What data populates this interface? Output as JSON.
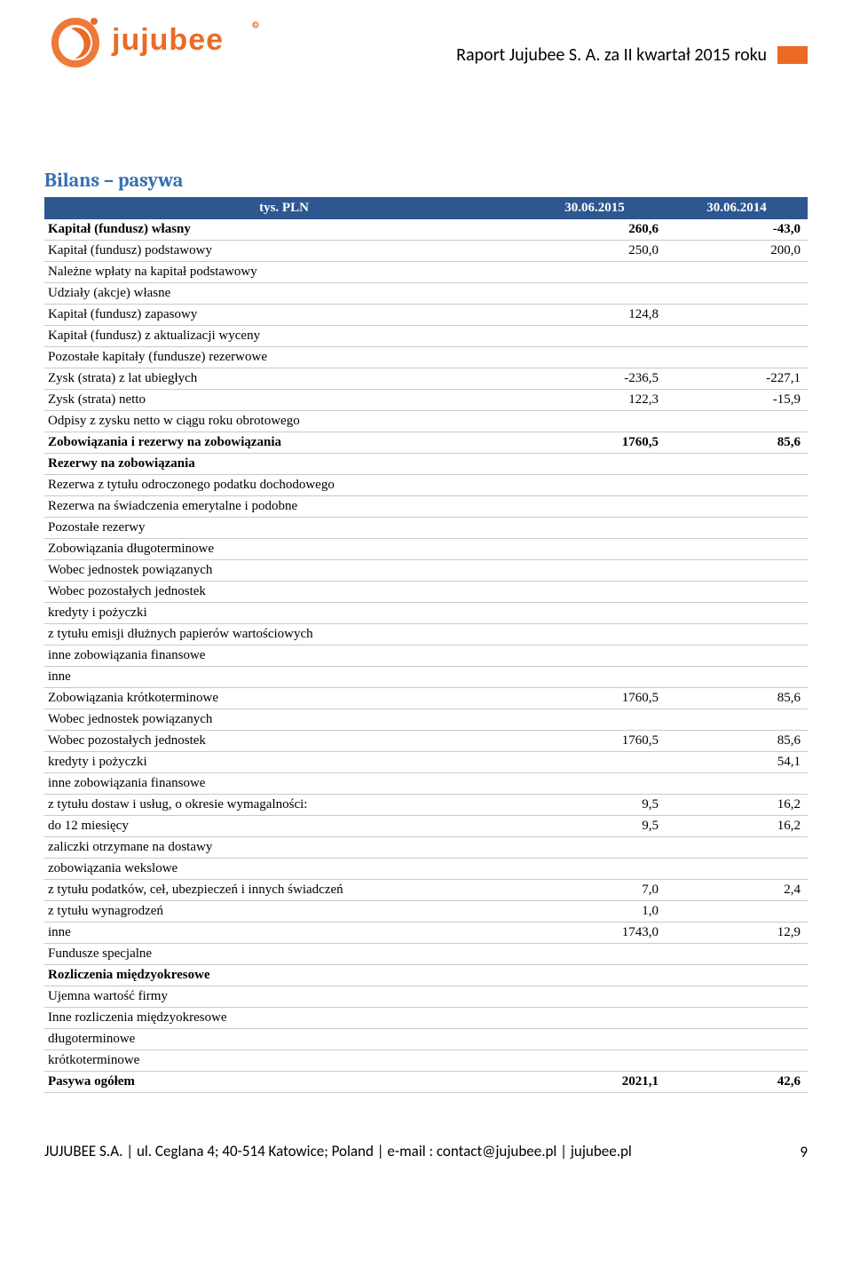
{
  "header": {
    "logo_text": "jujubee",
    "logo_color": "#ec6a24",
    "report_title": "Raport Jujubee S. A. za II kwartał 2015 roku"
  },
  "section_title": "Bilans – pasywa",
  "table": {
    "header_bg": "#2e5790",
    "columns": [
      "tys. PLN",
      "30.06.2015",
      "30.06.2014"
    ],
    "rows": [
      {
        "label": "Kapitał (fundusz) własny",
        "c1": "260,6",
        "c2": "-43,0",
        "bold": true
      },
      {
        "label": "Kapitał (fundusz) podstawowy",
        "c1": "250,0",
        "c2": "200,0"
      },
      {
        "label": "Należne wpłaty na kapitał podstawowy",
        "c1": "",
        "c2": ""
      },
      {
        "label": "Udziały (akcje) własne",
        "c1": "",
        "c2": ""
      },
      {
        "label": "Kapitał (fundusz) zapasowy",
        "c1": "124,8",
        "c2": ""
      },
      {
        "label": "Kapitał (fundusz) z aktualizacji wyceny",
        "c1": "",
        "c2": ""
      },
      {
        "label": "Pozostałe kapitały (fundusze) rezerwowe",
        "c1": "",
        "c2": ""
      },
      {
        "label": "Zysk (strata) z lat ubiegłych",
        "c1": "-236,5",
        "c2": "-227,1"
      },
      {
        "label": "Zysk (strata) netto",
        "c1": "122,3",
        "c2": "-15,9"
      },
      {
        "label": "Odpisy z zysku netto w ciągu roku obrotowego",
        "c1": "",
        "c2": ""
      },
      {
        "label": "Zobowiązania i rezerwy na zobowiązania",
        "c1": "1760,5",
        "c2": "85,6",
        "bold": true
      },
      {
        "label": "Rezerwy na zobowiązania",
        "c1": "",
        "c2": "",
        "bold": true
      },
      {
        "label": "Rezerwa z tytułu odroczonego podatku dochodowego",
        "c1": "",
        "c2": ""
      },
      {
        "label": "Rezerwa na świadczenia emerytalne i podobne",
        "c1": "",
        "c2": ""
      },
      {
        "label": " Pozostałe rezerwy",
        "c1": "",
        "c2": ""
      },
      {
        "label": "Zobowiązania długoterminowe",
        "c1": "",
        "c2": ""
      },
      {
        "label": "Wobec jednostek powiązanych",
        "c1": "",
        "c2": ""
      },
      {
        "label": "Wobec pozostałych jednostek",
        "c1": "",
        "c2": ""
      },
      {
        "label": "kredyty i pożyczki",
        "c1": "",
        "c2": ""
      },
      {
        "label": "z tytułu emisji dłużnych papierów wartościowych",
        "c1": "",
        "c2": ""
      },
      {
        "label": "inne zobowiązania finansowe",
        "c1": "",
        "c2": ""
      },
      {
        "label": "inne",
        "c1": "",
        "c2": ""
      },
      {
        "label": "Zobowiązania krótkoterminowe",
        "c1": "1760,5",
        "c2": "85,6"
      },
      {
        "label": "Wobec jednostek powiązanych",
        "c1": "",
        "c2": ""
      },
      {
        "label": "Wobec pozostałych jednostek",
        "c1": "1760,5",
        "c2": "85,6"
      },
      {
        "label": "kredyty i pożyczki",
        "c1": "",
        "c2": "54,1"
      },
      {
        "label": "inne zobowiązania finansowe",
        "c1": "",
        "c2": ""
      },
      {
        "label": "z tytułu dostaw i usług, o okresie wymagalności:",
        "c1": "9,5",
        "c2": "16,2"
      },
      {
        "label": "do 12 miesięcy",
        "c1": "9,5",
        "c2": "16,2"
      },
      {
        "label": "zaliczki otrzymane na dostawy",
        "c1": "",
        "c2": ""
      },
      {
        "label": "zobowiązania wekslowe",
        "c1": "",
        "c2": ""
      },
      {
        "label": "z tytułu podatków, ceł, ubezpieczeń i innych świadczeń",
        "c1": "7,0",
        "c2": "2,4"
      },
      {
        "label": "z tytułu wynagrodzeń",
        "c1": "1,0",
        "c2": ""
      },
      {
        "label": "inne",
        "c1": "1743,0",
        "c2": "12,9"
      },
      {
        "label": "Fundusze specjalne",
        "c1": "",
        "c2": ""
      },
      {
        "label": "Rozliczenia międzyokresowe",
        "c1": "",
        "c2": "",
        "bold": true
      },
      {
        "label": "Ujemna wartość firmy",
        "c1": "",
        "c2": ""
      },
      {
        "label": "Inne rozliczenia międzyokresowe",
        "c1": "",
        "c2": ""
      },
      {
        "label": "długoterminowe",
        "c1": "",
        "c2": ""
      },
      {
        "label": "krótkoterminowe",
        "c1": "",
        "c2": ""
      },
      {
        "label": "Pasywa ogółem",
        "c1": "2021,1",
        "c2": "42,6",
        "bold": true
      }
    ]
  },
  "footer": {
    "line": "JUJUBEE S.A. | ul. Ceglana 4; 40-514 Katowice; Poland | e-mail : contact@jujubee.pl | jujubee.pl",
    "page_number": "9"
  }
}
